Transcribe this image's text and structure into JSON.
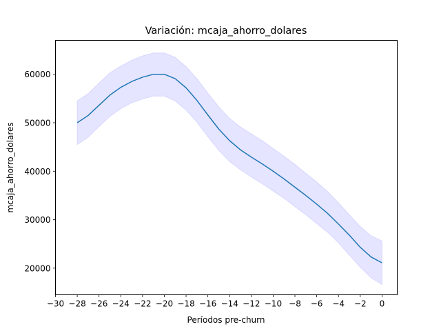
{
  "chart_data": {
    "type": "line",
    "title": "Variación: mcaja_ahorro_dolares",
    "xlabel": "Períodos pre-churn",
    "ylabel": "mcaja_ahorro_dolares",
    "xlim": [
      -30,
      1.4
    ],
    "ylim": [
      14500,
      67000
    ],
    "xticks": [
      -30,
      -28,
      -26,
      -24,
      -22,
      -20,
      -18,
      -16,
      -14,
      -12,
      -10,
      -8,
      -6,
      -4,
      -2,
      0
    ],
    "yticks": [
      20000,
      30000,
      40000,
      50000,
      60000
    ],
    "grid": false,
    "colors": {
      "line": "#1f77b4",
      "band": "#0000ff"
    },
    "series": [
      {
        "x": [
          -28,
          -27,
          -26,
          -25,
          -24,
          -23,
          -22,
          -21,
          -20,
          -19,
          -18,
          -17,
          -16,
          -15,
          -14,
          -13,
          -12,
          -11,
          -10,
          -9,
          -8,
          -7,
          -6,
          -5,
          -4,
          -3,
          -2,
          -1,
          0
        ],
        "y": [
          50000,
          51500,
          53600,
          55700,
          57300,
          58500,
          59400,
          60000,
          60000,
          59100,
          57200,
          54600,
          51600,
          48700,
          46300,
          44400,
          42900,
          41500,
          40000,
          38400,
          36700,
          35000,
          33200,
          31300,
          29100,
          26800,
          24300,
          22300,
          21100
        ],
        "lower": [
          45500,
          47000,
          49200,
          51300,
          52900,
          54100,
          54900,
          55500,
          55500,
          54500,
          52600,
          50100,
          47100,
          44300,
          42000,
          40300,
          38800,
          37400,
          35900,
          34400,
          32700,
          31000,
          29200,
          27400,
          25200,
          22700,
          20200,
          18000,
          16600
        ],
        "upper": [
          54500,
          56000,
          58200,
          60300,
          61700,
          62900,
          63800,
          64400,
          64400,
          63500,
          61600,
          59100,
          56100,
          53300,
          50900,
          49100,
          47700,
          46300,
          44700,
          43100,
          41400,
          39600,
          37800,
          35800,
          33500,
          31000,
          28600,
          26700,
          25600
        ]
      }
    ]
  }
}
